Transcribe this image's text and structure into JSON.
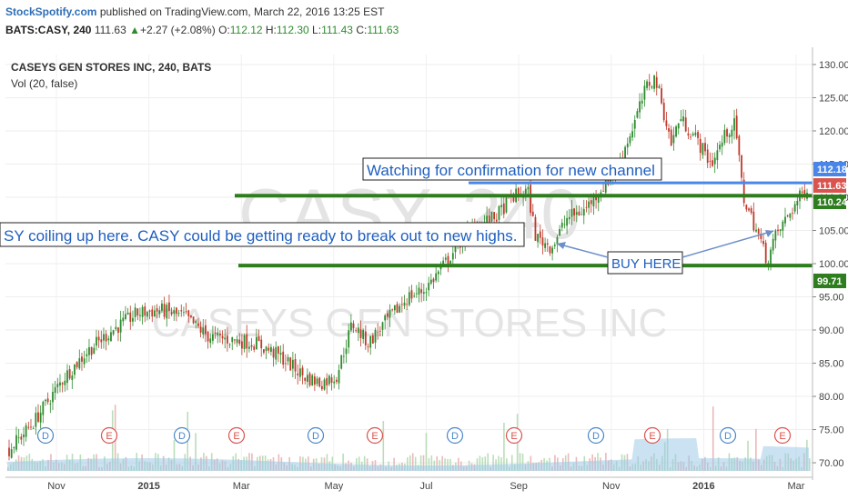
{
  "header": {
    "brand": "StockSpotify.com",
    "published": "published on TradingView.com, March 22, 2016 13:25 EST",
    "symbol": "BATS:CASY, 240",
    "last": "111.63",
    "change": "+2.27 (+2.08%)",
    "o_label": "O:",
    "o_val": "112.12",
    "h_label": "H:",
    "h_val": "112.30",
    "l_label": "L:",
    "l_val": "111.43",
    "c_label": "C:",
    "c_val": "111.63",
    "up_icon": "triangle-up-icon"
  },
  "chart": {
    "title": "CASEYS GEN STORES INC, 240, BATS",
    "study": "Vol (20, false)",
    "watermark_big": "CASY, 240",
    "watermark_name": "CASEYS GEN STORES INC",
    "annotations": {
      "watching": "Watching for confirmation for new channel",
      "coiling": "SY coiling up here. CASY could be getting ready to break out to new highs.",
      "buy": "BUY HERE"
    },
    "price_tags": [
      "112.18",
      "111.63",
      "110.24",
      "99.71"
    ],
    "events": [
      "D",
      "E",
      "D",
      "E",
      "D",
      "E",
      "D",
      "E",
      "D",
      "E",
      "D",
      "E"
    ],
    "colors": {
      "up": "#2e8b2e",
      "down": "#c0392b",
      "level": "#2e7d1f",
      "blueline": "#4a86e8",
      "tag_red": "#d9534f"
    }
  },
  "chart_data": {
    "type": "candlestick",
    "symbol": "CASY",
    "title": "CASEYS GEN STORES INC, 240, BATS",
    "x_ticks": [
      "Nov",
      "2015",
      "Mar",
      "May",
      "Jul",
      "Sep",
      "Nov",
      "2016",
      "Mar"
    ],
    "y_ticks": [
      70,
      75,
      80,
      85,
      90,
      95,
      100,
      105,
      110,
      115,
      120,
      125,
      130
    ],
    "ylim": [
      68.5,
      131.5
    ],
    "horizontal_levels": [
      {
        "value": 112.18,
        "color": "#4a86e8"
      },
      {
        "value": 110.24,
        "color": "#2e7d1f"
      },
      {
        "value": 99.71,
        "color": "#2e7d1f"
      }
    ],
    "price_path": [
      [
        0,
        72
      ],
      [
        0.03,
        76
      ],
      [
        0.07,
        83
      ],
      [
        0.1,
        87
      ],
      [
        0.13,
        90
      ],
      [
        0.16,
        92.5
      ],
      [
        0.19,
        93
      ],
      [
        0.22,
        92
      ],
      [
        0.25,
        89
      ],
      [
        0.28,
        88.5
      ],
      [
        0.31,
        88
      ],
      [
        0.34,
        86
      ],
      [
        0.37,
        83
      ],
      [
        0.39,
        82
      ],
      [
        0.41,
        83
      ],
      [
        0.43,
        91
      ],
      [
        0.45,
        88
      ],
      [
        0.47,
        91
      ],
      [
        0.5,
        95
      ],
      [
        0.52,
        96
      ],
      [
        0.54,
        99
      ],
      [
        0.57,
        104
      ],
      [
        0.59,
        106
      ],
      [
        0.61,
        107
      ],
      [
        0.63,
        110
      ],
      [
        0.65,
        111
      ],
      [
        0.66,
        104
      ],
      [
        0.68,
        102.5
      ],
      [
        0.7,
        107
      ],
      [
        0.72,
        108
      ],
      [
        0.74,
        111
      ],
      [
        0.76,
        114
      ],
      [
        0.78,
        120
      ],
      [
        0.8,
        127
      ],
      [
        0.81,
        128
      ],
      [
        0.83,
        118
      ],
      [
        0.84,
        122
      ],
      [
        0.86,
        119
      ],
      [
        0.88,
        115
      ],
      [
        0.9,
        120
      ],
      [
        0.91,
        121
      ],
      [
        0.92,
        110
      ],
      [
        0.94,
        104
      ],
      [
        0.95,
        100.5
      ],
      [
        0.96,
        104
      ],
      [
        0.98,
        108
      ],
      [
        1.0,
        111.63
      ]
    ],
    "last_price": 111.63
  }
}
